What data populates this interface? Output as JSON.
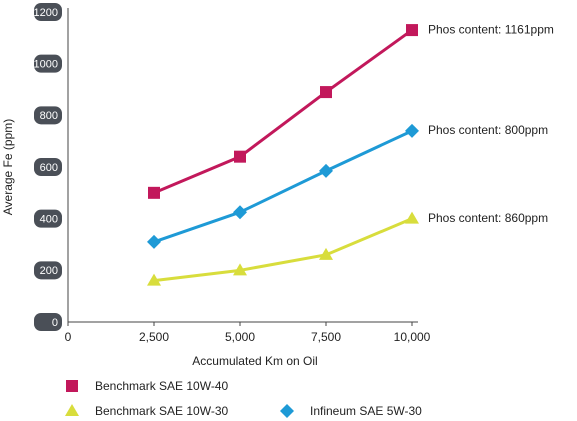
{
  "chart_data": {
    "type": "line",
    "x": [
      2500,
      5000,
      7500,
      10000
    ],
    "series": [
      {
        "name": "Benchmark SAE 10W-40",
        "color": "#c2185b",
        "marker": "square",
        "values": [
          500,
          640,
          890,
          1130
        ],
        "annotation": "Phos content: 1161ppm"
      },
      {
        "name": "Benchmark SAE 10W-30",
        "color": "#d8dd3c",
        "marker": "triangle",
        "values": [
          160,
          200,
          260,
          400
        ],
        "annotation": "Phos content: 860ppm"
      },
      {
        "name": "Infineum SAE 5W-30",
        "color": "#1e9ad6",
        "marker": "diamond",
        "values": [
          310,
          425,
          585,
          740
        ],
        "annotation": "Phos content: 800ppm"
      }
    ],
    "xlabel": "Accumulated Km on Oil",
    "ylabel": "Average Fe (ppm)",
    "xlim": [
      0,
      10000
    ],
    "xticks": [
      0,
      {
        "value": 2500,
        "label": "2,500"
      },
      {
        "value": 5000,
        "label": "5,000"
      },
      {
        "value": 7500,
        "label": "7,500"
      },
      {
        "value": 10000,
        "label": "10,000"
      }
    ],
    "ylim": [
      0,
      1200
    ],
    "yticks": [
      0,
      200,
      400,
      600,
      800,
      1000,
      1200
    ],
    "grid": false
  }
}
